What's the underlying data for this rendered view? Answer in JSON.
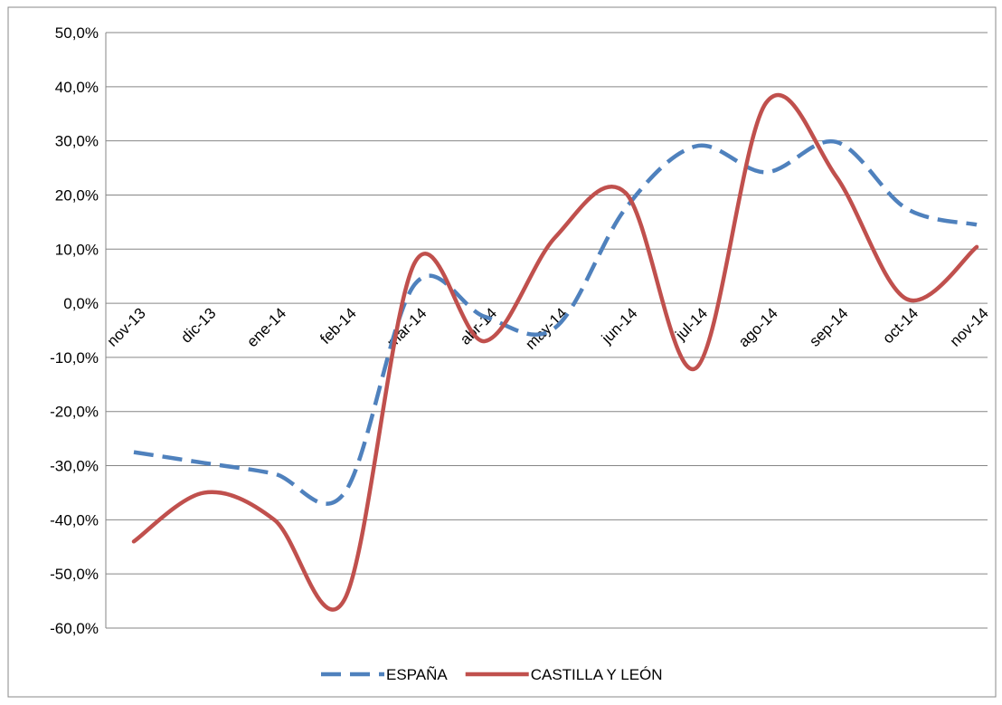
{
  "chart_data": {
    "type": "line",
    "categories": [
      "nov-13",
      "dic-13",
      "ene-14",
      "feb-14",
      "mar-14",
      "abr-14",
      "may-14",
      "jun-14",
      "jul-14",
      "ago-14",
      "sep-14",
      "oct-14",
      "nov-14"
    ],
    "series": [
      {
        "name": "ESPAÑA",
        "color": "#4f81bd",
        "dashed": true,
        "values": [
          -27.5,
          -29.5,
          -31.5,
          -35,
          3.5,
          -2.5,
          -4.5,
          17.5,
          29,
          24.2,
          29.8,
          17.5,
          14.5
        ]
      },
      {
        "name": "CASTILLA Y LEÓN",
        "color": "#c0504d",
        "dashed": false,
        "values": [
          -44,
          -35,
          -40,
          -54.7,
          7.5,
          -7,
          12.2,
          20.4,
          -12,
          37,
          23.4,
          0.8,
          10.4
        ]
      }
    ],
    "ylim": [
      -60,
      50
    ],
    "yticks": [
      {
        "value": -60,
        "label": "-60,0%"
      },
      {
        "value": -50,
        "label": "-50,0%"
      },
      {
        "value": -40,
        "label": "-40,0%"
      },
      {
        "value": -30,
        "label": "-30,0%"
      },
      {
        "value": -20,
        "label": "-20,0%"
      },
      {
        "value": -10,
        "label": "-10,0%"
      },
      {
        "value": 0,
        "label": "0,0%"
      },
      {
        "value": 10,
        "label": "10,0%"
      },
      {
        "value": 20,
        "label": "20,0%"
      },
      {
        "value": 30,
        "label": "30,0%"
      },
      {
        "value": 40,
        "label": "40,0%"
      },
      {
        "value": 50,
        "label": "50,0%"
      }
    ],
    "grid": true,
    "smooth": true,
    "legend": "bottom"
  }
}
